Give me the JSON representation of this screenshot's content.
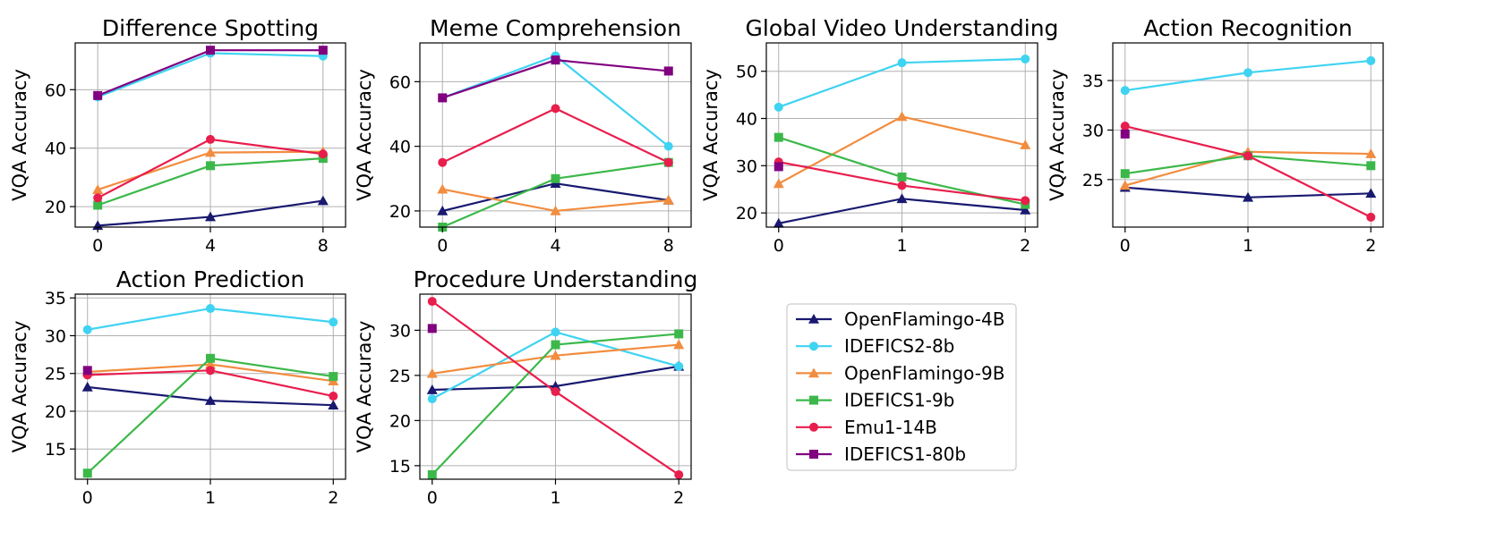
{
  "chart_data": [
    {
      "type": "line",
      "title": "Difference Spotting",
      "ylabel": "VQA Accuracy",
      "xlabel": "",
      "x": [
        0,
        4,
        8
      ],
      "xlim": [
        -0.8,
        8.8
      ],
      "ylim": [
        13,
        76
      ],
      "yticks": [
        20,
        40,
        60
      ],
      "grid": true,
      "series": [
        {
          "name": "OpenFlamingo-4B",
          "y": [
            13.5,
            16.5,
            22
          ]
        },
        {
          "name": "IDEFICS2-8b",
          "y": [
            57.5,
            72.5,
            71.5
          ]
        },
        {
          "name": "OpenFlamingo-9B",
          "y": [
            25.8,
            38.5,
            38.8
          ]
        },
        {
          "name": "IDEFICS1-9b",
          "y": [
            20.5,
            34,
            36.5
          ]
        },
        {
          "name": "Emu1-14B",
          "y": [
            23,
            43,
            38
          ]
        },
        {
          "name": "IDEFICS1-80b",
          "y": [
            58,
            73.5,
            73.5
          ]
        }
      ]
    },
    {
      "type": "line",
      "title": "Meme Comprehension",
      "ylabel": "VQA Accuracy",
      "xlabel": "",
      "x": [
        0,
        4,
        8
      ],
      "xlim": [
        -0.8,
        8.8
      ],
      "ylim": [
        15,
        72
      ],
      "yticks": [
        20,
        40,
        60
      ],
      "grid": true,
      "series": [
        {
          "name": "OpenFlamingo-4B",
          "y": [
            20,
            28.5,
            23.3
          ]
        },
        {
          "name": "IDEFICS2-8b",
          "y": [
            55,
            68,
            40
          ]
        },
        {
          "name": "OpenFlamingo-9B",
          "y": [
            26.7,
            20,
            23.3
          ]
        },
        {
          "name": "IDEFICS1-9b",
          "y": [
            15,
            30,
            35
          ]
        },
        {
          "name": "Emu1-14B",
          "y": [
            35,
            51.7,
            35
          ]
        },
        {
          "name": "IDEFICS1-80b",
          "y": [
            55,
            66.7,
            63.3
          ]
        }
      ]
    },
    {
      "type": "line",
      "title": "Global Video Understanding",
      "ylabel": "VQA Accuracy",
      "xlabel": "",
      "x": [
        0,
        1,
        2
      ],
      "xlim": [
        -0.1,
        2.1
      ],
      "ylim": [
        17,
        56
      ],
      "yticks": [
        20,
        30,
        40,
        50
      ],
      "grid": true,
      "series": [
        {
          "name": "OpenFlamingo-4B",
          "y": [
            17.8,
            23,
            20.6
          ]
        },
        {
          "name": "IDEFICS2-8b",
          "y": [
            42.4,
            51.8,
            52.6
          ]
        },
        {
          "name": "OpenFlamingo-9B",
          "y": [
            26.2,
            40.4,
            34.4
          ]
        },
        {
          "name": "IDEFICS1-9b",
          "y": [
            36,
            27.6,
            21.8
          ]
        },
        {
          "name": "Emu1-14B",
          "y": [
            30.8,
            25.8,
            22.6
          ]
        },
        {
          "name": "IDEFICS1-80b",
          "y": [
            29.8,
            null,
            null
          ]
        }
      ]
    },
    {
      "type": "line",
      "title": "Action Recognition",
      "ylabel": "VQA Accuracy",
      "xlabel": "",
      "x": [
        0,
        1,
        2
      ],
      "xlim": [
        -0.1,
        2.1
      ],
      "ylim": [
        20.2,
        38.8
      ],
      "yticks": [
        25,
        30,
        35
      ],
      "grid": true,
      "series": [
        {
          "name": "OpenFlamingo-4B",
          "y": [
            24.2,
            23.2,
            23.6
          ]
        },
        {
          "name": "IDEFICS2-8b",
          "y": [
            34,
            35.8,
            37
          ]
        },
        {
          "name": "OpenFlamingo-9B",
          "y": [
            24.4,
            27.8,
            27.6
          ]
        },
        {
          "name": "IDEFICS1-9b",
          "y": [
            25.6,
            27.4,
            26.4
          ]
        },
        {
          "name": "Emu1-14B",
          "y": [
            30.4,
            27.4,
            21.2
          ]
        },
        {
          "name": "IDEFICS1-80b",
          "y": [
            29.6,
            null,
            null
          ]
        }
      ]
    },
    {
      "type": "line",
      "title": "Action Prediction",
      "ylabel": "VQA Accuracy",
      "xlabel": "",
      "x": [
        0,
        1,
        2
      ],
      "xlim": [
        -0.1,
        2.1
      ],
      "ylim": [
        11,
        35.5
      ],
      "yticks": [
        15,
        20,
        25,
        30,
        35
      ],
      "grid": true,
      "series": [
        {
          "name": "OpenFlamingo-4B",
          "y": [
            23.2,
            21.4,
            20.8
          ]
        },
        {
          "name": "IDEFICS2-8b",
          "y": [
            30.8,
            33.6,
            31.8
          ]
        },
        {
          "name": "OpenFlamingo-9B",
          "y": [
            25.2,
            26.2,
            24
          ]
        },
        {
          "name": "IDEFICS1-9b",
          "y": [
            11.8,
            27,
            24.6
          ]
        },
        {
          "name": "Emu1-14B",
          "y": [
            24.8,
            25.4,
            22
          ]
        },
        {
          "name": "IDEFICS1-80b",
          "y": [
            25.4,
            null,
            null
          ]
        }
      ]
    },
    {
      "type": "line",
      "title": "Procedure Understanding",
      "ylabel": "VQA Accuracy",
      "xlabel": "",
      "x": [
        0,
        1,
        2
      ],
      "xlim": [
        -0.1,
        2.1
      ],
      "ylim": [
        13.5,
        34
      ],
      "yticks": [
        15,
        20,
        25,
        30
      ],
      "grid": true,
      "series": [
        {
          "name": "OpenFlamingo-4B",
          "y": [
            23.4,
            23.8,
            26
          ]
        },
        {
          "name": "IDEFICS2-8b",
          "y": [
            22.4,
            29.8,
            26
          ]
        },
        {
          "name": "OpenFlamingo-9B",
          "y": [
            25.2,
            27.2,
            28.4
          ]
        },
        {
          "name": "IDEFICS1-9b",
          "y": [
            14,
            28.4,
            29.6
          ]
        },
        {
          "name": "Emu1-14B",
          "y": [
            33.2,
            23.2,
            14
          ]
        },
        {
          "name": "IDEFICS1-80b",
          "y": [
            30.2,
            null,
            null
          ]
        }
      ]
    }
  ],
  "legend": {
    "placement": "bottom-right",
    "entries": [
      {
        "name": "OpenFlamingo-4B",
        "color": "#191970",
        "marker": "triangle"
      },
      {
        "name": "IDEFICS2-8b",
        "color": "#3FD3F2",
        "marker": "circle"
      },
      {
        "name": "OpenFlamingo-9B",
        "color": "#F28C3F",
        "marker": "triangle"
      },
      {
        "name": "IDEFICS1-9b",
        "color": "#3CB84A",
        "marker": "square"
      },
      {
        "name": "Emu1-14B",
        "color": "#E81E4C",
        "marker": "circle"
      },
      {
        "name": "IDEFICS1-80b",
        "color": "#800080",
        "marker": "square"
      }
    ]
  }
}
